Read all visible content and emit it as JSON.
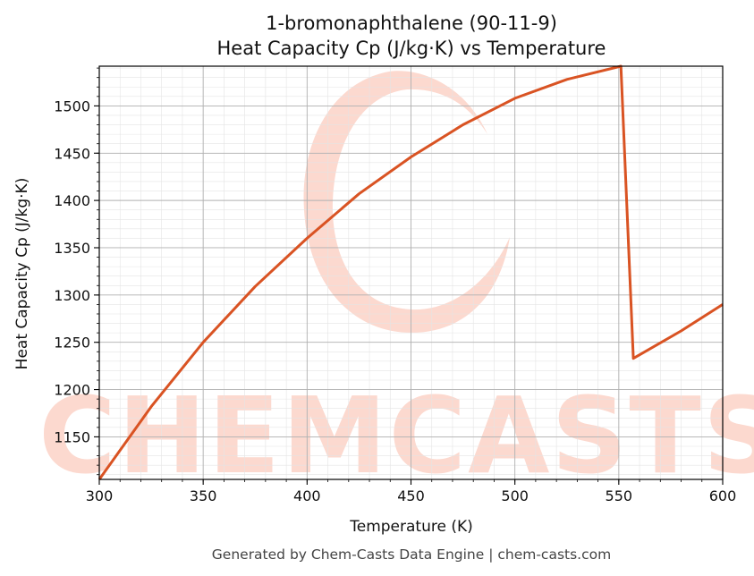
{
  "chart_data": {
    "type": "line",
    "title_line1": "1-bromonaphthalene (90-11-9)",
    "title_line2": "Heat Capacity Cp (J/kg·K) vs Temperature",
    "xlabel": "Temperature (K)",
    "ylabel": "Heat Capacity Cp (J/kg·K)",
    "xlim": [
      300,
      600
    ],
    "ylim": [
      1105,
      1542
    ],
    "xticks": [
      300,
      350,
      400,
      450,
      500,
      550,
      600
    ],
    "yticks": [
      1150,
      1200,
      1250,
      1300,
      1350,
      1400,
      1450,
      1500
    ],
    "grid": true,
    "line_color": "#d95323",
    "series": [
      {
        "x": [
          300,
          325,
          350,
          375,
          400,
          425,
          450,
          475,
          500,
          525,
          551,
          557,
          580,
          600
        ],
        "values": [
          1105,
          1182,
          1250,
          1309,
          1360,
          1407,
          1446,
          1480,
          1508,
          1528,
          1542,
          1233,
          1262,
          1290
        ]
      }
    ],
    "watermark": "CHEMCASTS",
    "footer": "Generated by Chem-Casts Data Engine | chem-casts.com"
  }
}
